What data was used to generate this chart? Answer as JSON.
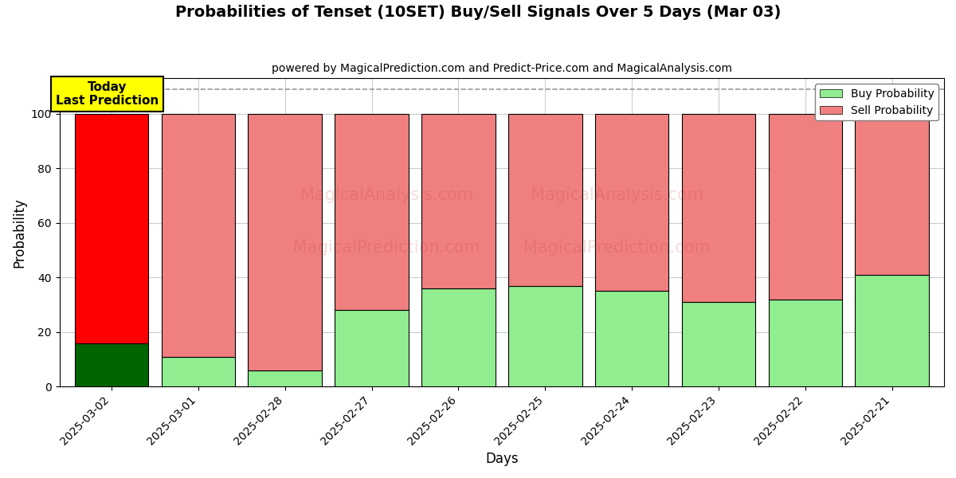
{
  "title": "Probabilities of Tenset (10SET) Buy/Sell Signals Over 5 Days (Mar 03)",
  "subtitle": "powered by MagicalPrediction.com and Predict-Price.com and MagicalAnalysis.com",
  "xlabel": "Days",
  "ylabel": "Probability",
  "categories": [
    "2025-03-02",
    "2025-03-01",
    "2025-02-28",
    "2025-02-27",
    "2025-02-26",
    "2025-02-25",
    "2025-02-24",
    "2025-02-23",
    "2025-02-22",
    "2025-02-21"
  ],
  "buy_values": [
    16,
    11,
    6,
    28,
    36,
    37,
    35,
    31,
    32,
    41
  ],
  "sell_values": [
    84,
    89,
    94,
    72,
    64,
    63,
    65,
    69,
    68,
    59
  ],
  "buy_colors": [
    "#006400",
    "#90EE90",
    "#90EE90",
    "#90EE90",
    "#90EE90",
    "#90EE90",
    "#90EE90",
    "#90EE90",
    "#90EE90",
    "#90EE90"
  ],
  "sell_colors": [
    "#FF0000",
    "#F08080",
    "#F08080",
    "#F08080",
    "#F08080",
    "#F08080",
    "#F08080",
    "#F08080",
    "#F08080",
    "#F08080"
  ],
  "today_box_color": "#FFFF00",
  "today_label": "Today\nLast Prediction",
  "legend_buy_color": "#90EE90",
  "legend_sell_color": "#F08080",
  "ylim": [
    0,
    113
  ],
  "yticks": [
    0,
    20,
    40,
    60,
    80,
    100
  ],
  "bar_width": 0.85,
  "dashed_line_y": 109,
  "background_color": "#ffffff",
  "grid_color": "#cccccc",
  "watermark1": "MagicalAnalysis.com",
  "watermark2": "MagicalPrediction.com"
}
